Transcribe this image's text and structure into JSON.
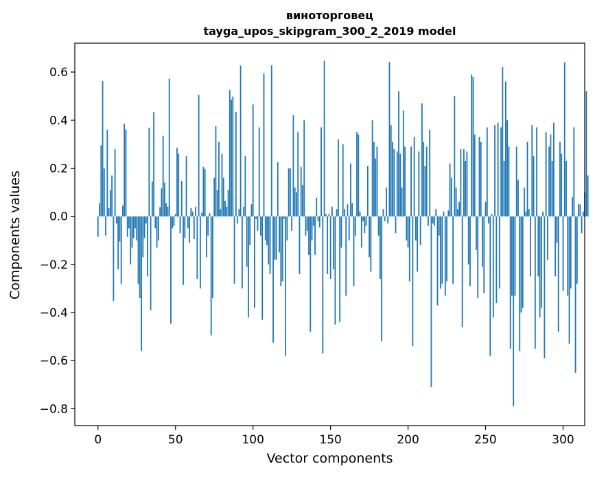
{
  "chart_data": {
    "type": "bar",
    "title_line1": "виноторговец",
    "title_line2": "tayga_upos_skipgram_300_2_2019 model",
    "xlabel": "Vector components",
    "ylabel": "Components values",
    "xlim": [
      -14.95,
      313.95
    ],
    "ylim": [
      -0.87,
      0.72
    ],
    "xticks": [
      0,
      50,
      100,
      150,
      200,
      250,
      300
    ],
    "xtick_labels": [
      "0",
      "50",
      "100",
      "150",
      "200",
      "250",
      "300"
    ],
    "yticks": [
      -0.8,
      -0.6,
      -0.4,
      -0.2,
      0.0,
      0.2,
      0.4,
      0.6
    ],
    "ytick_labels": [
      "−0.8",
      "−0.6",
      "−0.4",
      "−0.2",
      "0.0",
      "0.2",
      "0.4",
      "0.6"
    ],
    "grid": false,
    "bar_color": "#1f77b4",
    "values": [
      -0.085,
      0.055,
      0.295,
      0.563,
      0.2,
      -0.08,
      0.36,
      0.035,
      0.11,
      0.17,
      -0.352,
      0.28,
      -0.03,
      -0.22,
      -0.105,
      -0.28,
      0.045,
      0.385,
      0.36,
      -0.085,
      -0.05,
      -0.2,
      -0.13,
      -0.09,
      -0.05,
      -0.1,
      -0.28,
      -0.34,
      -0.56,
      -0.17,
      -0.09,
      -0.03,
      -0.25,
      0.368,
      -0.39,
      0.145,
      0.433,
      -0.05,
      -0.13,
      -0.1,
      0.038,
      0.117,
      0.335,
      0.14,
      0.055,
      0.04,
      0.573,
      -0.447,
      -0.05,
      -0.04,
      0.01,
      0.285,
      0.26,
      -0.07,
      0.147,
      -0.285,
      -0.09,
      0.25,
      -0.05,
      -0.11,
      0.036,
      0.02,
      -0.095,
      0.04,
      -0.26,
      0.505,
      -0.3,
      0.015,
      0.205,
      0.197,
      -0.17,
      -0.08,
      0.013,
      -0.495,
      -0.34,
      0.16,
      0.375,
      0.11,
      0.31,
      0.03,
      0.26,
      0.16,
      0.065,
      0.04,
      0.11,
      0.525,
      0.485,
      0.498,
      -0.28,
      0.435,
      -0.03,
      0.03,
      0.627,
      -0.3,
      0.04,
      0.25,
      -0.21,
      -0.42,
      -0.12,
      0.05,
      0.465,
      -0.38,
      -0.01,
      -0.06,
      0.37,
      -0.08,
      -0.43,
      0.594,
      -0.1,
      -0.12,
      -0.2,
      -0.24,
      0.628,
      -0.525,
      -0.18,
      -0.18,
      0.225,
      -0.15,
      -0.29,
      -0.27,
      -0.01,
      -0.58,
      -0.1,
      0.2,
      0.2,
      -0.06,
      0.42,
      0.12,
      0.1,
      0.35,
      -0.24,
      0.205,
      0.13,
      0.4,
      -0.08,
      -0.06,
      -0.16,
      -0.48,
      -0.1,
      -0.04,
      -0.16,
      0.077,
      -0.02,
      -0.045,
      0.37,
      -0.57,
      0.647,
      0.01,
      -0.24,
      0.01,
      -0.26,
      0.04,
      -0.22,
      -0.45,
      0.03,
      0.32,
      -0.44,
      -0.13,
      0.3,
      0.03,
      -0.33,
      0.05,
      -0.1,
      0.22,
      0.055,
      -0.29,
      -0.08,
      0.35,
      0.34,
      0.02,
      -0.13,
      -0.02,
      -0.07,
      -0.04,
      0.21,
      -0.17,
      -0.23,
      0.4,
      0.31,
      0.24,
      0.29,
      -0.08,
      -0.26,
      -0.52,
      0.03,
      -0.02,
      0.12,
      -0.03,
      0.642,
      0.38,
      0.31,
      0.28,
      -0.07,
      0.27,
      0.52,
      0.26,
      0.12,
      0.44,
      0.29,
      -0.1,
      -0.13,
      -0.27,
      0.29,
      -0.54,
      0.33,
      -0.1,
      -0.23,
      0.27,
      -0.12,
      0.47,
      0.31,
      0.21,
      0.29,
      -0.04,
      0.36,
      -0.71,
      -0.03,
      -0.04,
      0.03,
      -0.37,
      -0.08,
      -0.3,
      -0.28,
      0.02,
      -0.33,
      -0.27,
      0.025,
      0.22,
      0.16,
      -0.28,
      0.5,
      0.12,
      0.03,
      0.06,
      0.28,
      -0.46,
      0.28,
      0.23,
      0.27,
      -0.2,
      -0.29,
      0.59,
      0.58,
      0.34,
      -0.14,
      -0.34,
      0.33,
      0.31,
      -0.21,
      -0.32,
      0.06,
      0.37,
      -0.03,
      -0.58,
      0.01,
      -0.42,
      0.38,
      -0.36,
      0.39,
      -0.3,
      0.37,
      0.62,
      0.23,
      0.56,
      0.4,
      0.29,
      -0.55,
      -0.33,
      -0.79,
      -0.33,
      0.29,
      0.15,
      -0.56,
      -0.4,
      -0.38,
      0.12,
      0.02,
      0.31,
      0.03,
      -0.25,
      0.38,
      0.25,
      -0.55,
      0.37,
      -0.25,
      -0.42,
      -0.38,
      0.02,
      -0.59,
      0.35,
      -0.18,
      0.29,
      0.34,
      0.23,
      0.39,
      -0.25,
      -0.11,
      -0.48,
      0.31,
      0.26,
      -0.31,
      0.64,
      0.23,
      -0.33,
      -0.53,
      -0.3,
      0.08,
      0.37,
      -0.65,
      -0.28,
      0.05,
      0.05,
      -0.07,
      0.02,
      0.1,
      0.52,
      0.17
    ]
  }
}
